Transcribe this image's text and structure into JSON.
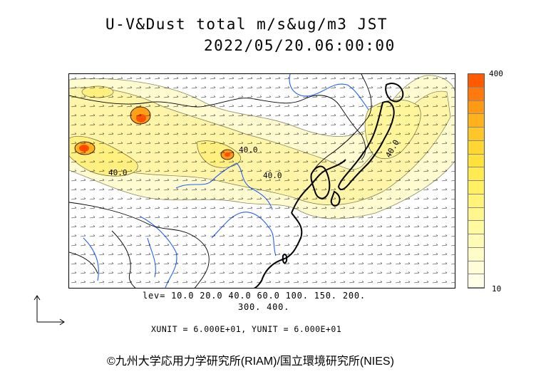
{
  "title": {
    "line1": "U-V&Dust total m/s&ug/m3 JST",
    "line2": "2022/05/20.06:00:00"
  },
  "colorbar": {
    "max_label": "400",
    "min_label": "10",
    "colors": [
      "#ff5a00",
      "#ff7a0a",
      "#ff9a14",
      "#ffb21e",
      "#ffc628",
      "#ffd732",
      "#ffe13c",
      "#ffea50",
      "#fff064",
      "#fff478",
      "#fff78c",
      "#fffaa0",
      "#fffbb4",
      "#fffcc8",
      "#fffdd8",
      "#fffee6"
    ]
  },
  "contour_labels": [
    "40.0",
    "40.0",
    "40.0",
    "40.0"
  ],
  "levels": {
    "line1": "lev= 10.0 20.0 40.0 60.0 100. 150. 200.",
    "line2": "300. 400."
  },
  "units": "XUNIT = 6.000E+01, YUNIT = 6.000E+01",
  "credit": "©九州大学応用力学研究所(RIAM)/国立環境研究所(NIES)"
}
